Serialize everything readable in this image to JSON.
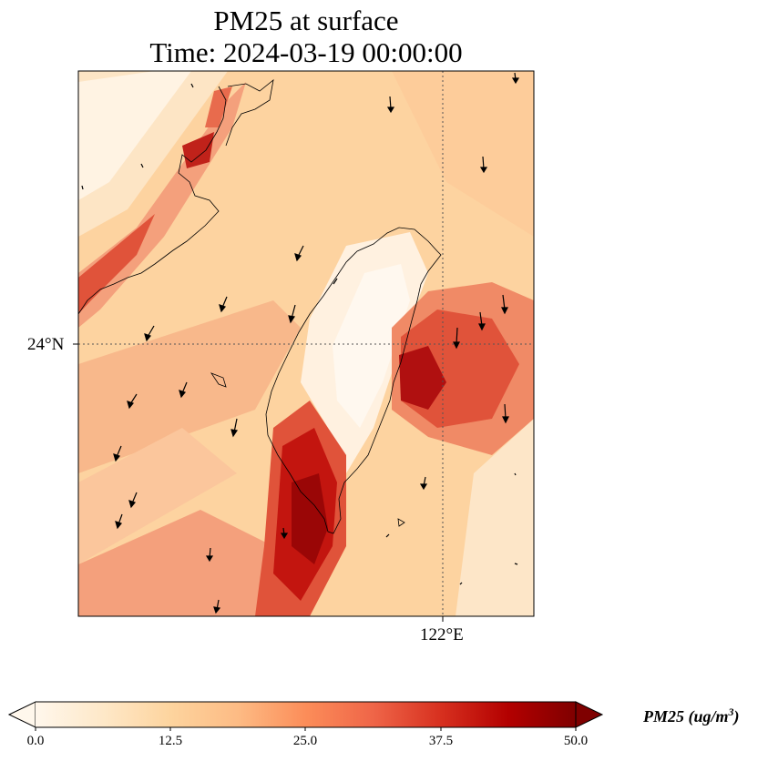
{
  "title": {
    "line1": "PM25 at surface",
    "line2": "Time: 2024-03-19 00:00:00"
  },
  "map": {
    "lat_label": "24°N",
    "lon_label": "122°E",
    "gridline_style": "dotted",
    "coastline_color": "#000000",
    "wind_arrow_color": "#000000"
  },
  "colorbar": {
    "colormap": "OrRd",
    "min": 0.0,
    "max": 50.0,
    "extend": "both",
    "ticks": [
      "0.0",
      "12.5",
      "25.0",
      "37.5",
      "50.0"
    ],
    "label": "PM25 (ug/m",
    "label_exp": "3",
    "label_close": ")"
  },
  "colors": {
    "low": "#fff7ec",
    "light": "#fdd49e",
    "mid": "#fc8d59",
    "high": "#d7301f",
    "max": "#7f0000"
  }
}
